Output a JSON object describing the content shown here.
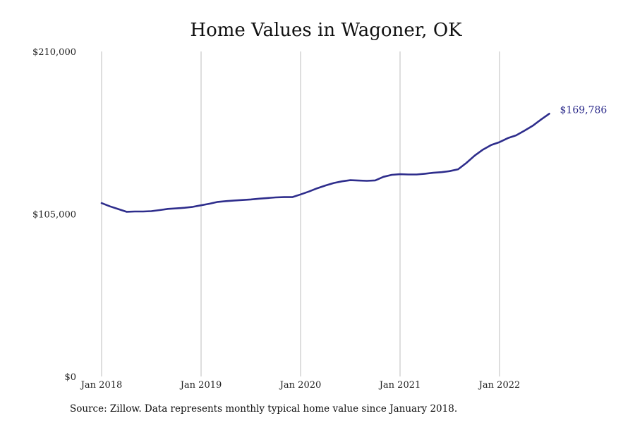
{
  "chart_data": {
    "type": "line",
    "title": "Home Values in Wagoner, OK",
    "xlabel": "",
    "ylabel": "",
    "ylim": [
      0,
      210000
    ],
    "yticks": [
      {
        "value": 0,
        "label": "$0"
      },
      {
        "value": 105000,
        "label": "$105,000"
      },
      {
        "value": 210000,
        "label": "$210,000"
      }
    ],
    "xticks": [
      {
        "value": "2018-01",
        "label": "Jan 2018"
      },
      {
        "value": "2019-01",
        "label": "Jan 2019"
      },
      {
        "value": "2020-01",
        "label": "Jan 2020"
      },
      {
        "value": "2021-01",
        "label": "Jan 2021"
      },
      {
        "value": "2022-01",
        "label": "Jan 2022"
      }
    ],
    "grid": {
      "vertical": true,
      "horizontal": false
    },
    "end_label": "$169,786",
    "series": [
      {
        "color": "#2e2d8c",
        "x": [
          "2018-01",
          "2018-02",
          "2018-03",
          "2018-04",
          "2018-05",
          "2018-06",
          "2018-07",
          "2018-08",
          "2018-09",
          "2018-10",
          "2018-11",
          "2018-12",
          "2019-01",
          "2019-02",
          "2019-03",
          "2019-04",
          "2019-05",
          "2019-06",
          "2019-07",
          "2019-08",
          "2019-09",
          "2019-10",
          "2019-11",
          "2019-12",
          "2020-01",
          "2020-02",
          "2020-03",
          "2020-04",
          "2020-05",
          "2020-06",
          "2020-07",
          "2020-08",
          "2020-09",
          "2020-10",
          "2020-11",
          "2020-12",
          "2021-01",
          "2021-02",
          "2021-03",
          "2021-04",
          "2021-05",
          "2021-06",
          "2021-07",
          "2021-08",
          "2021-09",
          "2021-10",
          "2021-11",
          "2021-12",
          "2022-01",
          "2022-02",
          "2022-03",
          "2022-04",
          "2022-05",
          "2022-06",
          "2022-07"
        ],
        "values": [
          112000,
          109900,
          108200,
          106400,
          106600,
          106600,
          106800,
          107500,
          108300,
          108600,
          109000,
          109600,
          110600,
          111600,
          112800,
          113300,
          113700,
          114000,
          114400,
          114900,
          115300,
          115700,
          115900,
          115900,
          117600,
          119500,
          121600,
          123400,
          125000,
          126100,
          126800,
          126600,
          126400,
          126700,
          129000,
          130300,
          130700,
          130500,
          130500,
          131000,
          131600,
          132000,
          132700,
          133900,
          138000,
          142700,
          146600,
          149600,
          151400,
          154000,
          155800,
          158800,
          162000,
          166000,
          169786
        ]
      }
    ]
  },
  "source_note": "Source: Zillow. Data represents monthly typical home value since January 2018."
}
